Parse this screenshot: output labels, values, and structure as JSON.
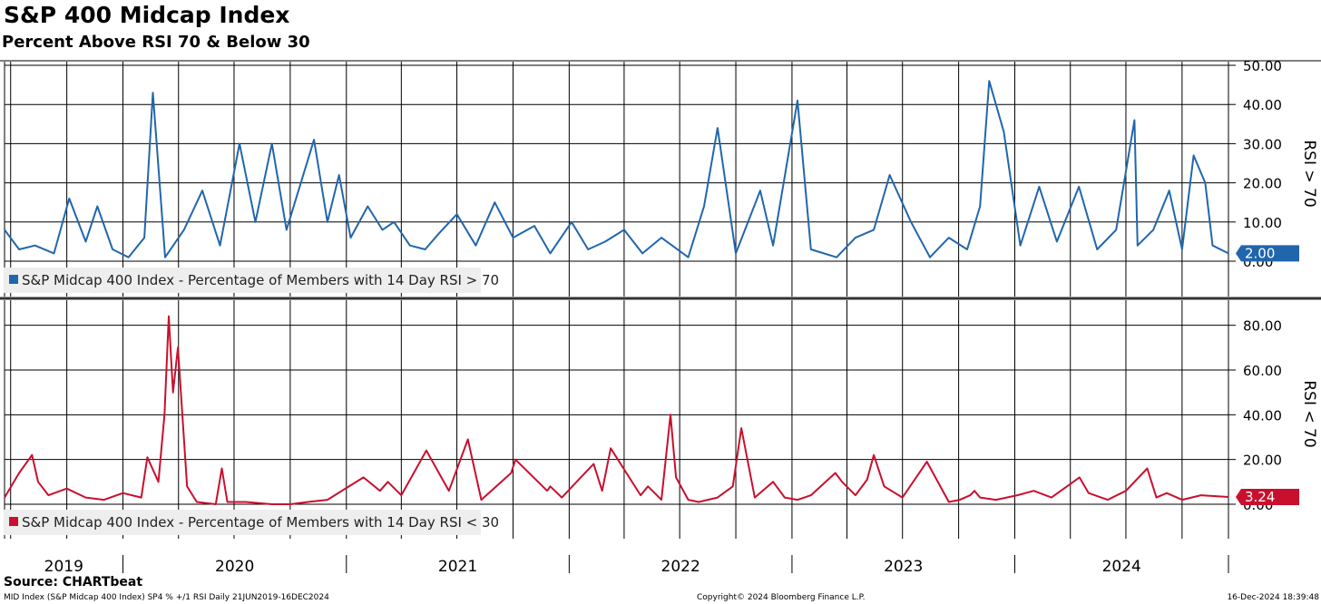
{
  "title": "S&P 400 Midcap Index",
  "subtitle": "Percent Above RSI 70 & Below 30",
  "source": "Source: CHARTbeat",
  "footer_left": "MID Index (S&P Midcap 400 Index) SP4 % +/1 RSI  Daily 21JUN2019-16DEC2024",
  "footer_center": "Copyright© 2024 Bloomberg Finance L.P.",
  "footer_right": "16-Dec-2024 18:39:48",
  "colors": {
    "blue": "#2166ac",
    "red": "#c8102e",
    "grid": "#000000"
  },
  "chart_data": [
    {
      "type": "line",
      "panel": "top",
      "ylabel": "RSI > 70",
      "ylim": [
        0,
        50
      ],
      "yticks": [
        "0.00",
        "10.00",
        "20.00",
        "30.00",
        "40.00",
        "50.00"
      ],
      "last_value_label": "2.00",
      "series": [
        {
          "name": "S&P Midcap 400 Index - Percentage of Members with 14 Day RSI > 70",
          "color": "#2166ac",
          "x": [
            "2019-06-21",
            "2019-07-15",
            "2019-08-10",
            "2019-09-10",
            "2019-10-05",
            "2019-11-01",
            "2019-11-20",
            "2019-12-15",
            "2020-01-10",
            "2020-02-05",
            "2020-02-19",
            "2020-03-10",
            "2020-04-10",
            "2020-05-10",
            "2020-06-08",
            "2020-07-10",
            "2020-08-05",
            "2020-09-01",
            "2020-09-25",
            "2020-11-09",
            "2020-12-01",
            "2020-12-20",
            "2021-01-08",
            "2021-02-05",
            "2021-03-01",
            "2021-03-20",
            "2021-04-15",
            "2021-05-10",
            "2021-06-01",
            "2021-07-01",
            "2021-08-01",
            "2021-09-01",
            "2021-10-01",
            "2021-11-05",
            "2021-12-01",
            "2022-01-05",
            "2022-02-01",
            "2022-03-01",
            "2022-04-01",
            "2022-05-01",
            "2022-06-01",
            "2022-07-15",
            "2022-08-10",
            "2022-09-01",
            "2022-10-01",
            "2022-11-10",
            "2022-12-01",
            "2023-01-10",
            "2023-02-01",
            "2023-03-15",
            "2023-04-15",
            "2023-05-15",
            "2023-06-10",
            "2023-07-15",
            "2023-08-15",
            "2023-09-15",
            "2023-10-15",
            "2023-11-05",
            "2023-11-20",
            "2023-12-14",
            "2024-01-10",
            "2024-02-10",
            "2024-03-10",
            "2024-04-15",
            "2024-05-15",
            "2024-06-15",
            "2024-07-15",
            "2024-07-20",
            "2024-08-15",
            "2024-09-10",
            "2024-10-01",
            "2024-10-20",
            "2024-11-08",
            "2024-11-20",
            "2024-12-16"
          ],
          "values": [
            8,
            3,
            4,
            2,
            16,
            5,
            14,
            3,
            1,
            6,
            43,
            1,
            8,
            18,
            4,
            30,
            10,
            30,
            8,
            31,
            10,
            22,
            6,
            14,
            8,
            10,
            4,
            3,
            7,
            12,
            4,
            15,
            6,
            9,
            2,
            10,
            3,
            5,
            8,
            2,
            6,
            1,
            14,
            34,
            2,
            18,
            4,
            41,
            3,
            1,
            6,
            8,
            22,
            10,
            1,
            6,
            3,
            14,
            46,
            33,
            4,
            19,
            5,
            19,
            3,
            8,
            36,
            4,
            8,
            18,
            3,
            27,
            20,
            4,
            2
          ]
        }
      ]
    },
    {
      "type": "line",
      "panel": "bottom",
      "ylabel": "RSI < 70",
      "ylim": [
        0,
        90
      ],
      "yticks": [
        "0.00",
        "20.00",
        "40.00",
        "60.00",
        "80.00"
      ],
      "last_value_label": "3.24",
      "series": [
        {
          "name": "S&P Midcap 400 Index - Percentage of Members with 14 Day RSI < 30",
          "color": "#c8102e",
          "x": [
            "2019-06-21",
            "2019-07-15",
            "2019-08-05",
            "2019-08-15",
            "2019-09-01",
            "2019-10-01",
            "2019-11-01",
            "2019-12-01",
            "2020-01-01",
            "2020-01-31",
            "2020-02-10",
            "2020-02-28",
            "2020-03-09",
            "2020-03-16",
            "2020-03-23",
            "2020-03-31",
            "2020-04-15",
            "2020-05-01",
            "2020-06-01",
            "2020-06-11",
            "2020-06-20",
            "2020-07-20",
            "2020-09-01",
            "2020-10-01",
            "2020-10-30",
            "2020-12-01",
            "2021-01-29",
            "2021-02-25",
            "2021-03-10",
            "2021-04-01",
            "2021-05-12",
            "2021-06-18",
            "2021-07-19",
            "2021-08-10",
            "2021-09-28",
            "2021-10-05",
            "2021-11-26",
            "2021-12-01",
            "2021-12-20",
            "2022-01-20",
            "2022-02-10",
            "2022-02-24",
            "2022-03-10",
            "2022-04-28",
            "2022-05-10",
            "2022-06-01",
            "2022-06-16",
            "2022-06-25",
            "2022-07-15",
            "2022-08-01",
            "2022-09-01",
            "2022-09-26",
            "2022-10-10",
            "2022-11-01",
            "2022-12-01",
            "2022-12-20",
            "2023-01-10",
            "2023-02-01",
            "2023-03-13",
            "2023-03-24",
            "2023-04-15",
            "2023-05-04",
            "2023-05-15",
            "2023-06-01",
            "2023-07-01",
            "2023-08-10",
            "2023-09-15",
            "2023-10-03",
            "2023-10-20",
            "2023-10-27",
            "2023-11-05",
            "2023-12-01",
            "2024-01-05",
            "2024-02-01",
            "2024-03-01",
            "2024-04-16",
            "2024-05-01",
            "2024-06-01",
            "2024-07-01",
            "2024-08-05",
            "2024-08-20",
            "2024-09-06",
            "2024-10-01",
            "2024-11-01",
            "2024-12-16"
          ],
          "values": [
            3,
            14,
            22,
            10,
            4,
            7,
            3,
            2,
            5,
            3,
            21,
            10,
            40,
            84,
            50,
            70,
            8,
            1,
            0,
            16,
            1,
            1,
            0,
            0,
            1,
            2,
            12,
            6,
            10,
            4,
            24,
            6,
            29,
            2,
            14,
            20,
            6,
            8,
            3,
            12,
            18,
            6,
            25,
            4,
            8,
            2,
            40,
            12,
            2,
            1,
            3,
            8,
            34,
            3,
            10,
            3,
            2,
            4,
            14,
            10,
            4,
            11,
            22,
            8,
            3,
            19,
            1,
            2,
            4,
            6,
            3,
            2,
            4,
            6,
            3,
            12,
            5,
            2,
            6,
            16,
            3,
            5,
            2,
            4,
            3.24
          ]
        }
      ]
    }
  ],
  "x_axis": {
    "labels": [
      "2019",
      "2020",
      "2021",
      "2022",
      "2023",
      "2024"
    ]
  }
}
